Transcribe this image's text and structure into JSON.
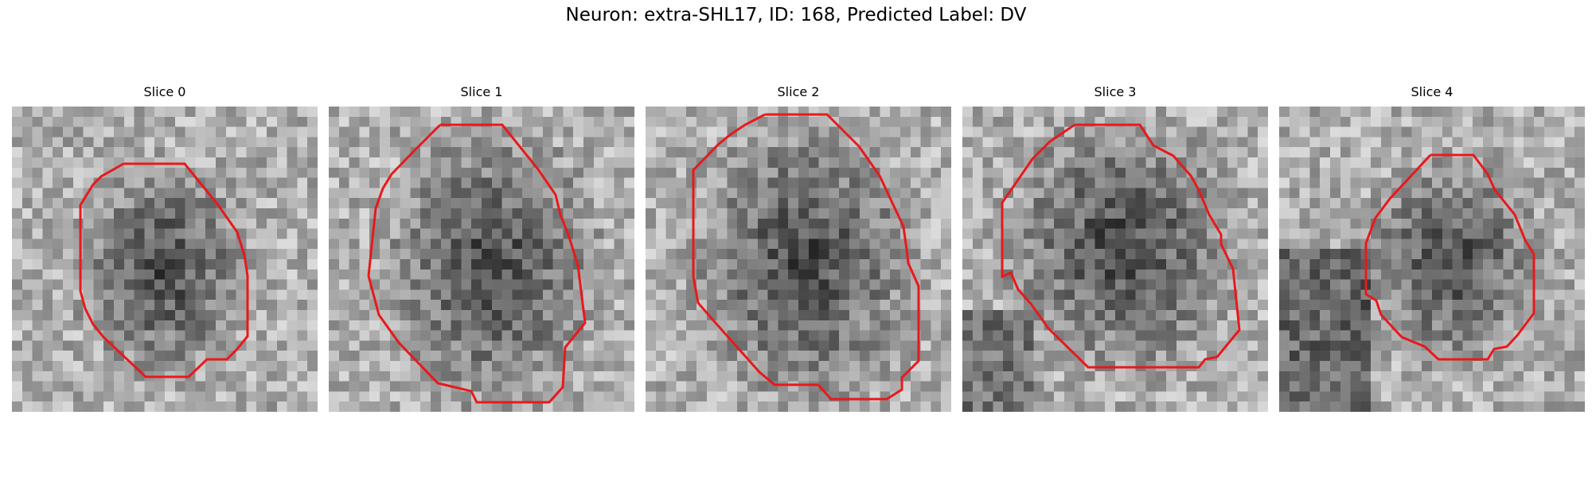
{
  "figure": {
    "title": "Neuron: extra-SHL17, ID: 168, Predicted Label: DV"
  },
  "slices": [
    {
      "title": "Slice 0"
    },
    {
      "title": "Slice 1"
    },
    {
      "title": "Slice 2"
    },
    {
      "title": "Slice 3"
    },
    {
      "title": "Slice 4"
    }
  ],
  "colors": {
    "contour": "#e8191c",
    "background": "#ffffff"
  }
}
